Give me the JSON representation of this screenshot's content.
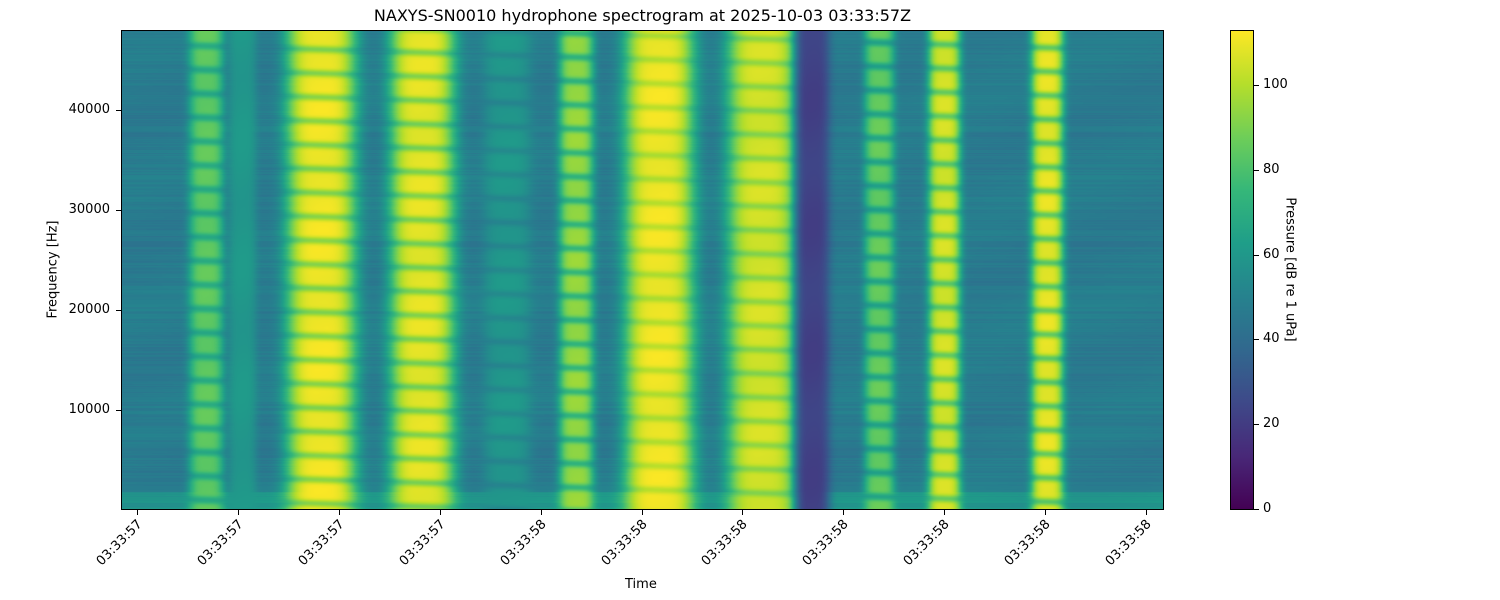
{
  "chart_data": {
    "type": "heatmap",
    "title": "NAXYS-SN0010 hydrophone spectrogram at 2025-10-03 03:33:57Z",
    "xlabel": "Time",
    "ylabel": "Frequency [Hz]",
    "x_tick_labels": [
      "03:33:57",
      "03:33:57",
      "03:33:57",
      "03:33:57",
      "03:33:58",
      "03:33:58",
      "03:33:58",
      "03:33:58",
      "03:33:58",
      "03:33:58",
      "03:33:58"
    ],
    "y_ticks": [
      10000,
      20000,
      30000,
      40000
    ],
    "ylim": [
      0,
      48000
    ],
    "colormap": "viridis",
    "colorbar": {
      "label": "Pressure [dB re 1 uPa]",
      "ticks": [
        0,
        20,
        40,
        60,
        80,
        100
      ],
      "range": [
        0,
        113
      ]
    },
    "grid": false
  }
}
